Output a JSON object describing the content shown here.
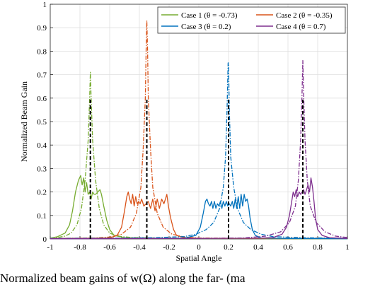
{
  "chart_data": {
    "type": "line",
    "title": "",
    "xlabel": "Spatial Angle",
    "ylabel": "Normalized Beam Gain",
    "xlim": [
      -1,
      1
    ],
    "ylim": [
      0,
      1
    ],
    "xticks": [
      "-1",
      "-0.8",
      "-0.6",
      "-0.4",
      "-0.2",
      "0",
      "0.2",
      "0.4",
      "0.6",
      "0.8",
      "1"
    ],
    "yticks": [
      "0",
      "0.1",
      "0.2",
      "0.3",
      "0.4",
      "0.5",
      "0.6",
      "0.7",
      "0.8",
      "0.9",
      "1"
    ],
    "grid": true,
    "legend_position": "top-right",
    "series": [
      {
        "name": "Case 1 (θ = -0.73)",
        "color": "#77ac30",
        "theta": -0.73,
        "peak": 0.71,
        "dashdot_gain": [
          [
            -1,
            0.004
          ],
          [
            -0.95,
            0.006
          ],
          [
            -0.9,
            0.012
          ],
          [
            -0.86,
            0.025
          ],
          [
            -0.82,
            0.06
          ],
          [
            -0.79,
            0.13
          ],
          [
            -0.765,
            0.25
          ],
          [
            -0.745,
            0.42
          ],
          [
            -0.735,
            0.6
          ],
          [
            -0.73,
            0.71
          ],
          [
            -0.725,
            0.6
          ],
          [
            -0.715,
            0.42
          ],
          [
            -0.695,
            0.25
          ],
          [
            -0.67,
            0.13
          ],
          [
            -0.64,
            0.06
          ],
          [
            -0.6,
            0.025
          ],
          [
            -0.55,
            0.012
          ],
          [
            -0.45,
            0.006
          ],
          [
            -0.2,
            0.003
          ],
          [
            0.2,
            0.002
          ],
          [
            1,
            0.001
          ]
        ],
        "solid_gain": [
          [
            -1,
            0.003
          ],
          [
            -0.95,
            0.01
          ],
          [
            -0.9,
            0.025
          ],
          [
            -0.87,
            0.06
          ],
          [
            -0.85,
            0.12
          ],
          [
            -0.83,
            0.2
          ],
          [
            -0.81,
            0.25
          ],
          [
            -0.795,
            0.27
          ],
          [
            -0.785,
            0.23
          ],
          [
            -0.775,
            0.26
          ],
          [
            -0.765,
            0.2
          ],
          [
            -0.755,
            0.24
          ],
          [
            -0.745,
            0.19
          ],
          [
            -0.735,
            0.2
          ],
          [
            -0.725,
            0.17
          ],
          [
            -0.715,
            0.2
          ],
          [
            -0.705,
            0.19
          ],
          [
            -0.695,
            0.19
          ],
          [
            -0.68,
            0.2
          ],
          [
            -0.665,
            0.21
          ],
          [
            -0.655,
            0.19
          ],
          [
            -0.64,
            0.14
          ],
          [
            -0.62,
            0.08
          ],
          [
            -0.6,
            0.04
          ],
          [
            -0.57,
            0.015
          ],
          [
            -0.5,
            0.005
          ],
          [
            -0.3,
            0.003
          ],
          [
            1,
            0.001
          ]
        ]
      },
      {
        "name": "Case 2 (θ = -0.35)",
        "color": "#d95319",
        "theta": -0.35,
        "peak": 0.93,
        "dashdot_gain": [
          [
            -1,
            0.002
          ],
          [
            -0.7,
            0.004
          ],
          [
            -0.6,
            0.008
          ],
          [
            -0.52,
            0.02
          ],
          [
            -0.46,
            0.05
          ],
          [
            -0.42,
            0.11
          ],
          [
            -0.39,
            0.22
          ],
          [
            -0.375,
            0.38
          ],
          [
            -0.36,
            0.6
          ],
          [
            -0.355,
            0.8
          ],
          [
            -0.35,
            0.93
          ],
          [
            -0.345,
            0.8
          ],
          [
            -0.34,
            0.6
          ],
          [
            -0.325,
            0.38
          ],
          [
            -0.31,
            0.22
          ],
          [
            -0.28,
            0.11
          ],
          [
            -0.24,
            0.05
          ],
          [
            -0.18,
            0.02
          ],
          [
            -0.1,
            0.008
          ],
          [
            0,
            0.004
          ],
          [
            0.2,
            0.003
          ],
          [
            1,
            0.002
          ]
        ],
        "solid_gain": [
          [
            -1,
            0.002
          ],
          [
            -0.6,
            0.004
          ],
          [
            -0.55,
            0.015
          ],
          [
            -0.52,
            0.05
          ],
          [
            -0.5,
            0.12
          ],
          [
            -0.485,
            0.18
          ],
          [
            -0.475,
            0.2
          ],
          [
            -0.465,
            0.17
          ],
          [
            -0.455,
            0.15
          ],
          [
            -0.445,
            0.19
          ],
          [
            -0.435,
            0.14
          ],
          [
            -0.425,
            0.18
          ],
          [
            -0.415,
            0.15
          ],
          [
            -0.405,
            0.16
          ],
          [
            -0.395,
            0.15
          ],
          [
            -0.385,
            0.17
          ],
          [
            -0.37,
            0.14
          ],
          [
            -0.355,
            0.15
          ],
          [
            -0.34,
            0.16
          ],
          [
            -0.325,
            0.13
          ],
          [
            -0.31,
            0.17
          ],
          [
            -0.295,
            0.12
          ],
          [
            -0.28,
            0.17
          ],
          [
            -0.265,
            0.13
          ],
          [
            -0.25,
            0.17
          ],
          [
            -0.235,
            0.15
          ],
          [
            -0.225,
            0.17
          ],
          [
            -0.215,
            0.19
          ],
          [
            -0.205,
            0.14
          ],
          [
            -0.19,
            0.09
          ],
          [
            -0.17,
            0.04
          ],
          [
            -0.15,
            0.015
          ],
          [
            -0.1,
            0.005
          ],
          [
            0,
            0.003
          ],
          [
            1,
            0.002
          ]
        ]
      },
      {
        "name": "Case 3 (θ = 0.2)",
        "color": "#0072bd",
        "theta": 0.2,
        "peak": 0.75,
        "dashdot_gain": [
          [
            -1,
            0.002
          ],
          [
            -0.6,
            0.003
          ],
          [
            -0.3,
            0.005
          ],
          [
            -0.1,
            0.01
          ],
          [
            -0.02,
            0.02
          ],
          [
            0.05,
            0.04
          ],
          [
            0.1,
            0.07
          ],
          [
            0.14,
            0.13
          ],
          [
            0.165,
            0.22
          ],
          [
            0.18,
            0.35
          ],
          [
            0.19,
            0.55
          ],
          [
            0.197,
            0.75
          ],
          [
            0.2,
            0.75
          ],
          [
            0.205,
            0.55
          ],
          [
            0.215,
            0.35
          ],
          [
            0.235,
            0.22
          ],
          [
            0.26,
            0.13
          ],
          [
            0.3,
            0.07
          ],
          [
            0.35,
            0.04
          ],
          [
            0.42,
            0.02
          ],
          [
            0.5,
            0.01
          ],
          [
            0.7,
            0.005
          ],
          [
            1,
            0.003
          ]
        ],
        "solid_gain": [
          [
            -1,
            0.001
          ],
          [
            -0.1,
            0.003
          ],
          [
            -0.02,
            0.015
          ],
          [
            0.01,
            0.05
          ],
          [
            0.03,
            0.11
          ],
          [
            0.045,
            0.16
          ],
          [
            0.055,
            0.17
          ],
          [
            0.065,
            0.15
          ],
          [
            0.075,
            0.14
          ],
          [
            0.085,
            0.16
          ],
          [
            0.095,
            0.13
          ],
          [
            0.105,
            0.16
          ],
          [
            0.115,
            0.13
          ],
          [
            0.125,
            0.15
          ],
          [
            0.135,
            0.14
          ],
          [
            0.145,
            0.16
          ],
          [
            0.155,
            0.13
          ],
          [
            0.165,
            0.16
          ],
          [
            0.175,
            0.14
          ],
          [
            0.185,
            0.16
          ],
          [
            0.195,
            0.14
          ],
          [
            0.205,
            0.15
          ],
          [
            0.215,
            0.14
          ],
          [
            0.225,
            0.16
          ],
          [
            0.235,
            0.13
          ],
          [
            0.245,
            0.17
          ],
          [
            0.255,
            0.13
          ],
          [
            0.265,
            0.18
          ],
          [
            0.275,
            0.13
          ],
          [
            0.285,
            0.19
          ],
          [
            0.295,
            0.14
          ],
          [
            0.305,
            0.19
          ],
          [
            0.315,
            0.16
          ],
          [
            0.325,
            0.17
          ],
          [
            0.335,
            0.14
          ],
          [
            0.345,
            0.09
          ],
          [
            0.36,
            0.04
          ],
          [
            0.38,
            0.015
          ],
          [
            0.42,
            0.004
          ],
          [
            0.6,
            0.002
          ],
          [
            1,
            0.001
          ]
        ]
      },
      {
        "name": "Case 4 (θ = 0.7)",
        "color": "#7e2f8e",
        "theta": 0.7,
        "peak": 0.76,
        "dashdot_gain": [
          [
            -1,
            0.001
          ],
          [
            0,
            0.002
          ],
          [
            0.3,
            0.004
          ],
          [
            0.45,
            0.012
          ],
          [
            0.55,
            0.03
          ],
          [
            0.61,
            0.07
          ],
          [
            0.65,
            0.14
          ],
          [
            0.67,
            0.25
          ],
          [
            0.685,
            0.42
          ],
          [
            0.695,
            0.62
          ],
          [
            0.7,
            0.76
          ],
          [
            0.705,
            0.62
          ],
          [
            0.715,
            0.42
          ],
          [
            0.73,
            0.25
          ],
          [
            0.75,
            0.14
          ],
          [
            0.79,
            0.07
          ],
          [
            0.85,
            0.03
          ],
          [
            0.92,
            0.012
          ],
          [
            1,
            0.006
          ]
        ],
        "solid_gain": [
          [
            -1,
            0.001
          ],
          [
            0.4,
            0.003
          ],
          [
            0.5,
            0.006
          ],
          [
            0.56,
            0.02
          ],
          [
            0.59,
            0.05
          ],
          [
            0.61,
            0.1
          ],
          [
            0.625,
            0.16
          ],
          [
            0.635,
            0.2
          ],
          [
            0.645,
            0.18
          ],
          [
            0.655,
            0.21
          ],
          [
            0.665,
            0.18
          ],
          [
            0.675,
            0.2
          ],
          [
            0.685,
            0.19
          ],
          [
            0.695,
            0.2
          ],
          [
            0.705,
            0.21
          ],
          [
            0.715,
            0.19
          ],
          [
            0.725,
            0.21
          ],
          [
            0.735,
            0.23
          ],
          [
            0.745,
            0.2
          ],
          [
            0.755,
            0.26
          ],
          [
            0.765,
            0.22
          ],
          [
            0.775,
            0.16
          ],
          [
            0.785,
            0.09
          ],
          [
            0.8,
            0.04
          ],
          [
            0.83,
            0.015
          ],
          [
            0.88,
            0.005
          ],
          [
            1,
            0.002
          ]
        ]
      }
    ]
  },
  "caption": "Normalized beam gains of w(Ω) along the far- (ma"
}
